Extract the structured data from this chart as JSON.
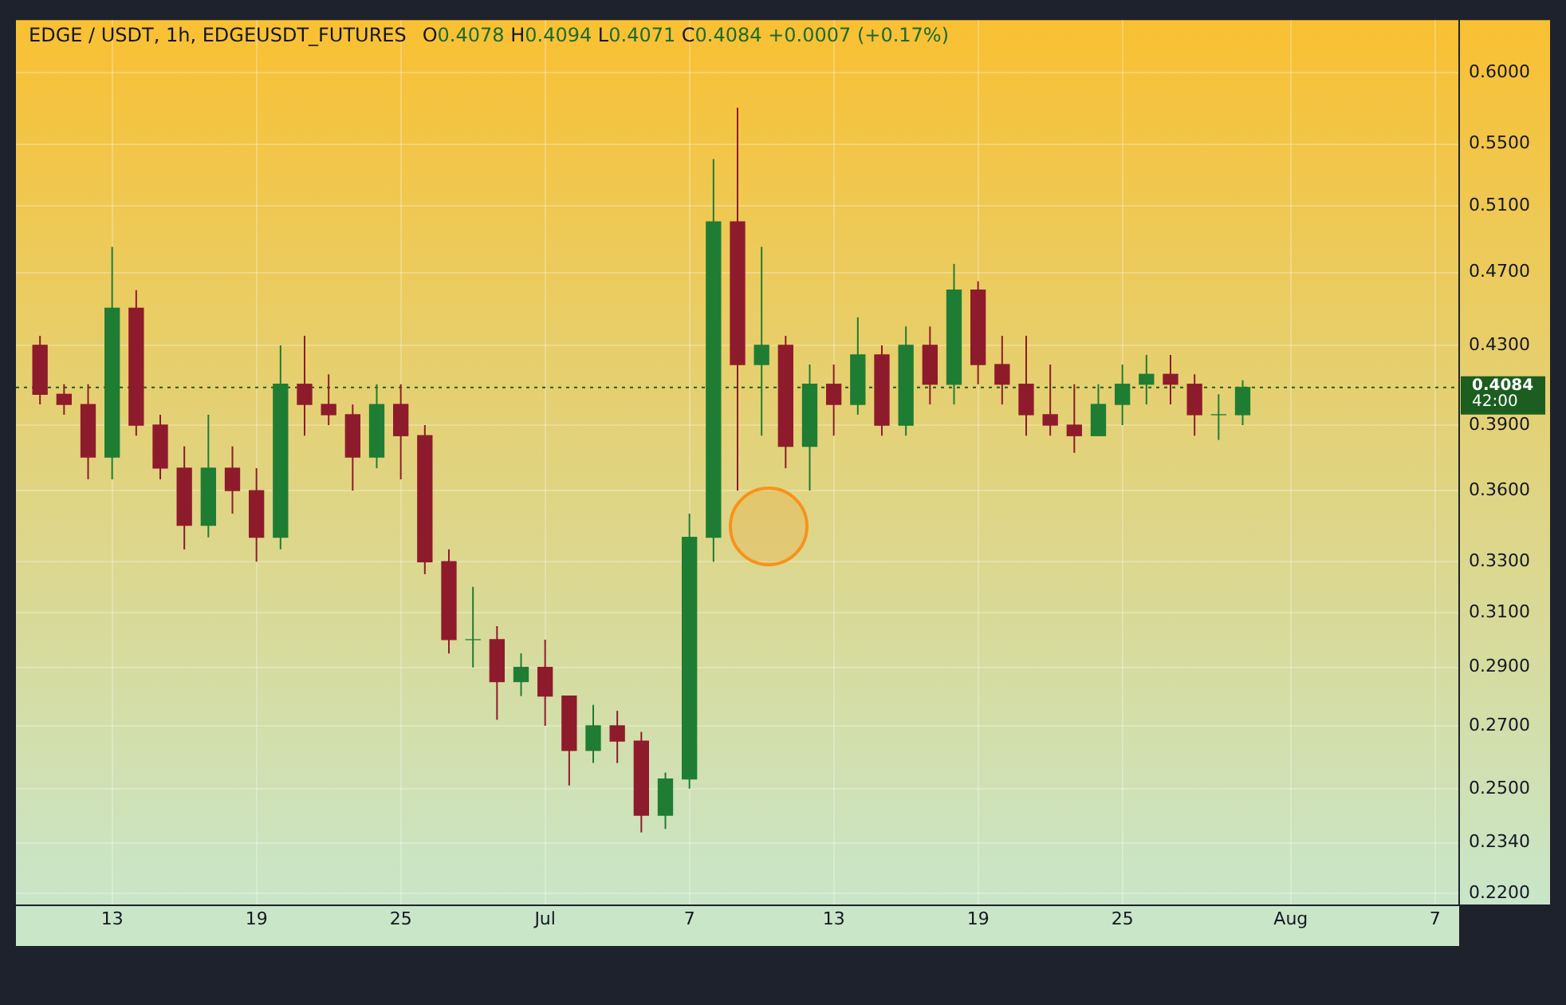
{
  "chart_data": {
    "type": "candlestick",
    "title": "EDGE / USDT, 1h, EDGEUSDT_FUTURES",
    "subtitle": "O0.4078 H0.4094 L0.4071 C0.4084 +0.0007 (+0.17%)",
    "x": [
      "--06-10",
      "--06-11",
      "--06-12",
      "--06-13",
      "--06-14",
      "--06-15",
      "--06-16",
      "--06-17",
      "--06-18",
      "--06-19",
      "--06-20",
      "--06-21",
      "--06-22",
      "--06-23",
      "--06-24",
      "--06-25",
      "--06-26",
      "--06-27",
      "--06-28",
      "--06-29",
      "--06-30",
      "--07-01",
      "--07-02",
      "--07-03",
      "--07-04",
      "--07-05",
      "--07-06",
      "--07-07",
      "--07-08",
      "--07-09",
      "--07-10",
      "--07-11",
      "--07-12",
      "--07-13",
      "--07-14",
      "--07-15",
      "--07-16",
      "--07-17",
      "--07-18",
      "--07-19",
      "--07-20",
      "--07-21",
      "--07-22",
      "--07-23",
      "--07-24",
      "--07-25",
      "--07-26",
      "--07-27",
      "--07-28",
      "--07-29",
      "--07-30"
    ],
    "ohlc": [
      [
        0.43,
        0.435,
        0.4,
        0.405
      ],
      [
        0.405,
        0.41,
        0.395,
        0.4
      ],
      [
        0.4,
        0.41,
        0.365,
        0.375
      ],
      [
        0.375,
        0.485,
        0.365,
        0.45
      ],
      [
        0.45,
        0.46,
        0.385,
        0.39
      ],
      [
        0.39,
        0.395,
        0.365,
        0.37
      ],
      [
        0.37,
        0.38,
        0.335,
        0.345
      ],
      [
        0.345,
        0.395,
        0.34,
        0.37
      ],
      [
        0.37,
        0.38,
        0.35,
        0.36
      ],
      [
        0.36,
        0.37,
        0.33,
        0.34
      ],
      [
        0.34,
        0.43,
        0.335,
        0.41
      ],
      [
        0.41,
        0.435,
        0.385,
        0.4
      ],
      [
        0.4,
        0.415,
        0.39,
        0.395
      ],
      [
        0.395,
        0.4,
        0.36,
        0.375
      ],
      [
        0.375,
        0.41,
        0.37,
        0.4
      ],
      [
        0.4,
        0.41,
        0.365,
        0.385
      ],
      [
        0.385,
        0.39,
        0.325,
        0.33
      ],
      [
        0.33,
        0.335,
        0.295,
        0.3
      ],
      [
        0.3,
        0.32,
        0.29,
        0.3
      ],
      [
        0.3,
        0.305,
        0.272,
        0.285
      ],
      [
        0.285,
        0.295,
        0.28,
        0.29
      ],
      [
        0.29,
        0.3,
        0.27,
        0.28
      ],
      [
        0.28,
        0.28,
        0.251,
        0.262
      ],
      [
        0.262,
        0.277,
        0.258,
        0.27
      ],
      [
        0.27,
        0.275,
        0.258,
        0.265
      ],
      [
        0.265,
        0.268,
        0.237,
        0.242
      ],
      [
        0.242,
        0.255,
        0.238,
        0.253
      ],
      [
        0.253,
        0.35,
        0.25,
        0.34
      ],
      [
        0.34,
        0.54,
        0.33,
        0.5
      ],
      [
        0.5,
        0.575,
        0.36,
        0.42
      ],
      [
        0.42,
        0.485,
        0.385,
        0.43
      ],
      [
        0.43,
        0.435,
        0.37,
        0.38
      ],
      [
        0.38,
        0.42,
        0.36,
        0.41
      ],
      [
        0.41,
        0.42,
        0.385,
        0.4
      ],
      [
        0.4,
        0.445,
        0.395,
        0.425
      ],
      [
        0.425,
        0.43,
        0.385,
        0.39
      ],
      [
        0.39,
        0.44,
        0.385,
        0.43
      ],
      [
        0.43,
        0.44,
        0.4,
        0.41
      ],
      [
        0.41,
        0.475,
        0.4,
        0.46
      ],
      [
        0.46,
        0.465,
        0.41,
        0.42
      ],
      [
        0.42,
        0.435,
        0.4,
        0.41
      ],
      [
        0.41,
        0.435,
        0.385,
        0.395
      ],
      [
        0.395,
        0.42,
        0.385,
        0.39
      ],
      [
        0.39,
        0.41,
        0.377,
        0.385
      ],
      [
        0.385,
        0.41,
        0.385,
        0.4
      ],
      [
        0.4,
        0.42,
        0.39,
        0.41
      ],
      [
        0.41,
        0.425,
        0.4,
        0.415
      ],
      [
        0.415,
        0.425,
        0.4,
        0.41
      ],
      [
        0.41,
        0.415,
        0.385,
        0.395
      ],
      [
        0.395,
        0.405,
        0.383,
        0.395
      ],
      [
        0.395,
        0.412,
        0.39,
        0.4084
      ]
    ],
    "xlim": [
      "--06-09",
      "--08-08"
    ],
    "xticks": [
      {
        "value": "--06-13",
        "label": "13"
      },
      {
        "value": "--06-19",
        "label": "19"
      },
      {
        "value": "--06-25",
        "label": "25"
      },
      {
        "value": "--07-01",
        "label": "Jul"
      },
      {
        "value": "--07-07",
        "label": "7"
      },
      {
        "value": "--07-13",
        "label": "13"
      },
      {
        "value": "--07-19",
        "label": "19"
      },
      {
        "value": "--07-25",
        "label": "25"
      },
      {
        "value": "--08-01",
        "label": "Aug"
      },
      {
        "value": "--08-07",
        "label": "7"
      }
    ],
    "ylim": [
      0.217,
      0.64
    ],
    "log": "y",
    "yticks": [
      {
        "value": 0.22,
        "label": "0.2200"
      },
      {
        "value": 0.234,
        "label": "0.2340"
      },
      {
        "value": 0.25,
        "label": "0.2500"
      },
      {
        "value": 0.27,
        "label": "0.2700"
      },
      {
        "value": 0.29,
        "label": "0.2900"
      },
      {
        "value": 0.31,
        "label": "0.3100"
      },
      {
        "value": 0.33,
        "label": "0.3300"
      },
      {
        "value": 0.36,
        "label": "0.3600"
      },
      {
        "value": 0.39,
        "label": "0.3900"
      },
      {
        "value": 0.43,
        "label": "0.4300"
      },
      {
        "value": 0.47,
        "label": "0.4700"
      },
      {
        "value": 0.51,
        "label": "0.5100"
      },
      {
        "value": 0.55,
        "label": "0.5500"
      },
      {
        "value": 0.6,
        "label": "0.6000"
      }
    ],
    "grid": true,
    "ref_lines": [
      {
        "axis": "y",
        "value": 0.4084,
        "label": "0.4084",
        "color": "#1b5e20",
        "line_style": "dotted"
      }
    ],
    "annotations": [
      "42:00"
    ]
  }
}
